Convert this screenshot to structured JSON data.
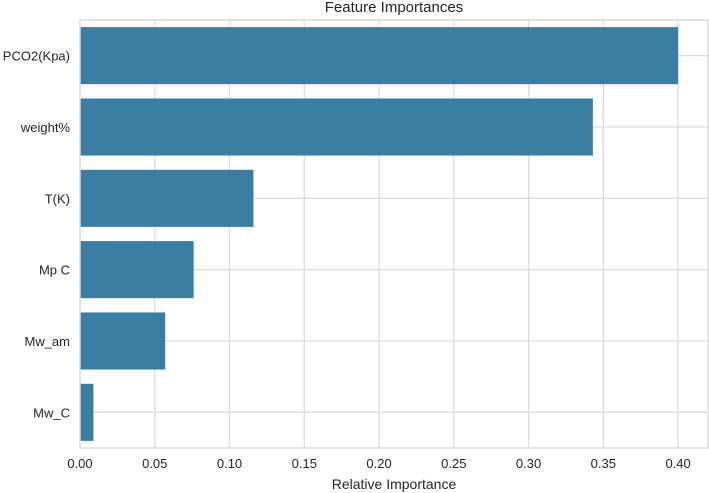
{
  "chart_data": {
    "type": "bar",
    "orientation": "horizontal",
    "title": "Feature Importances",
    "xlabel": "Relative Importance",
    "ylabel": "",
    "categories": [
      "PCO2(Kpa)",
      "weight%",
      "T(K)",
      "Mp C",
      "Mw_am",
      "Mw_C"
    ],
    "values": [
      0.4,
      0.343,
      0.116,
      0.076,
      0.057,
      0.009
    ],
    "xlim": [
      0.0,
      0.42
    ],
    "xticks": [
      "0.00",
      "0.05",
      "0.10",
      "0.15",
      "0.20",
      "0.25",
      "0.30",
      "0.35",
      "0.40"
    ],
    "grid": true,
    "bar_color": "#3a7ea3",
    "grid_color": "#dcdcdc",
    "background": "#ffffff"
  }
}
